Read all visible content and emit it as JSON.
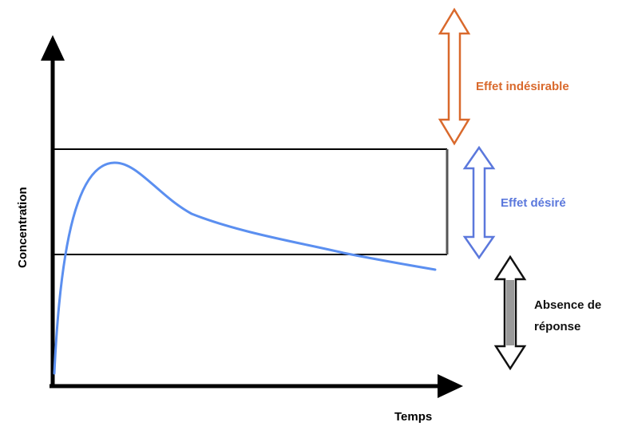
{
  "axes": {
    "x_label": "Temps",
    "y_label": "Concentration"
  },
  "zones": {
    "undesired": {
      "label": "Effet indésirable",
      "color": "#d9692c"
    },
    "desired": {
      "label": "Effet désiré",
      "color": "#5b78dc"
    },
    "no_response": {
      "label_line1": "Absence de",
      "label_line2": "réponse",
      "color": "#111111"
    }
  },
  "curve": {
    "color": "#5b8ff0"
  },
  "icons": {
    "undesired_arrow": "double-arrow-vertical-icon",
    "desired_arrow": "double-arrow-vertical-icon",
    "no_response_arrow": "double-arrow-vertical-icon"
  }
}
